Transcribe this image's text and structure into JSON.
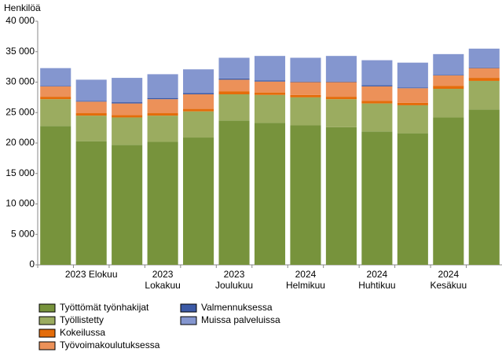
{
  "chart_data": {
    "type": "stacked-bar",
    "y_label": "Henkilöä",
    "categories": [
      null,
      "2023 Elokuu",
      null,
      "2023 Lokakuu",
      null,
      "2023 Joulukuu",
      null,
      "2024 Helmikuu",
      null,
      "2024 Huhtikuu",
      null,
      "2024 Kesäkuu",
      null
    ],
    "series": [
      {
        "name": "Työttömät työnhakijat",
        "color": "#77933c",
        "values": [
          22800,
          20300,
          19700,
          20200,
          20900,
          23700,
          23300,
          22900,
          22600,
          21900,
          21600,
          24200,
          25500
        ]
      },
      {
        "name": "Työllistetty",
        "color": "#9bac60",
        "values": [
          4400,
          4200,
          4500,
          4300,
          4300,
          4300,
          4600,
          4600,
          4600,
          4600,
          4600,
          4700,
          4700
        ]
      },
      {
        "name": "Kokeilussa",
        "color": "#e46c0a",
        "values": [
          400,
          400,
          400,
          400,
          400,
          500,
          400,
          400,
          400,
          400,
          400,
          500,
          500
        ]
      },
      {
        "name": "Työvoimakoulutuksessa",
        "color": "#ec9159",
        "values": [
          1700,
          1900,
          1900,
          2300,
          2400,
          1900,
          1800,
          2100,
          2400,
          2400,
          2400,
          1700,
          1600
        ]
      },
      {
        "name": "Valmennuksessa",
        "color": "#3c5aa6",
        "values": [
          100,
          100,
          200,
          200,
          200,
          200,
          200,
          100,
          100,
          200,
          100,
          100,
          100
        ]
      },
      {
        "name": "Muissa palveluissa",
        "color": "#8496cf",
        "values": [
          2900,
          3500,
          4000,
          3900,
          3900,
          3400,
          4000,
          3900,
          4200,
          4100,
          4100,
          3400,
          3100
        ]
      }
    ],
    "ylim": [
      0,
      40000
    ],
    "yticks": [
      0,
      {
        "value": 5000,
        "label": "5 000"
      },
      {
        "value": 10000,
        "label": "10 000"
      },
      {
        "value": 15000,
        "label": "15 000"
      },
      {
        "value": 20000,
        "label": "20 000"
      },
      {
        "value": 25000,
        "label": "25 000"
      },
      {
        "value": 30000,
        "label": "30 000"
      },
      {
        "value": 35000,
        "label": "35 000"
      },
      {
        "value": 40000,
        "label": "40 000"
      }
    ],
    "grid": false
  }
}
